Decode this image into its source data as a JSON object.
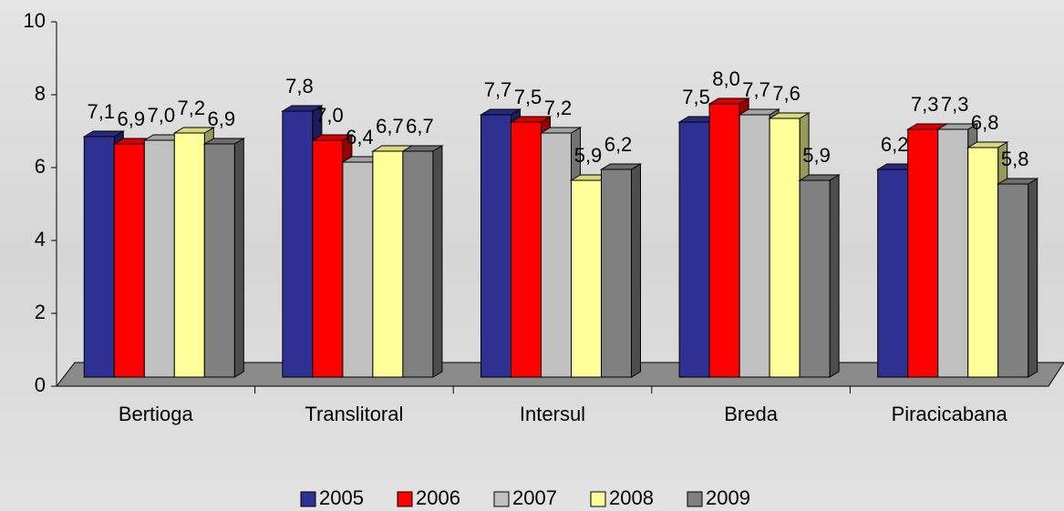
{
  "chart_data": {
    "type": "bar3d",
    "categories": [
      "Bertioga",
      "Translitoral",
      "Intersul",
      "Breda",
      "Piracicabana"
    ],
    "series": [
      {
        "name": "2005",
        "color": "#2e3192",
        "values": [
          7.1,
          7.8,
          7.7,
          7.5,
          6.2
        ],
        "value_labels": [
          "7,1",
          "7,8",
          "7,7",
          "7,5",
          "6,2"
        ]
      },
      {
        "name": "2006",
        "color": "#ff0000",
        "values": [
          6.9,
          7.0,
          7.5,
          8.0,
          7.3
        ],
        "value_labels": [
          "6,9",
          "7,0",
          "7,5",
          "8,0",
          "7,3"
        ]
      },
      {
        "name": "2007",
        "color": "#c0c0c0",
        "values": [
          7.0,
          6.4,
          7.2,
          7.7,
          7.3
        ],
        "value_labels": [
          "7,0",
          "6,4",
          "7,2",
          "7,7",
          "7,3"
        ]
      },
      {
        "name": "2008",
        "color": "#ffff99",
        "values": [
          7.2,
          6.7,
          5.9,
          7.6,
          6.8
        ],
        "value_labels": [
          "7,2",
          "6,7",
          "5,9",
          "7,6",
          "6,8"
        ]
      },
      {
        "name": "2009",
        "color": "#808080",
        "values": [
          6.9,
          6.7,
          6.2,
          5.9,
          5.8
        ],
        "value_labels": [
          "6,9",
          "6,7",
          "6,2",
          "5,9",
          "5,8"
        ]
      }
    ],
    "ylim": [
      0,
      10
    ],
    "yticks": [
      0,
      2,
      4,
      6,
      8,
      10
    ],
    "legend": "bottom"
  }
}
